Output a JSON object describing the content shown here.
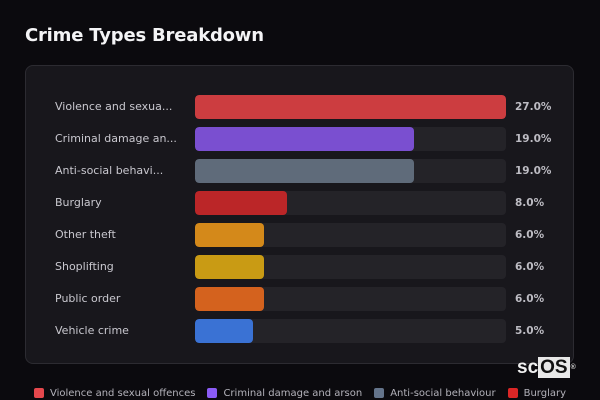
{
  "header": {
    "title": "Crime Types Breakdown"
  },
  "chart_data": {
    "type": "bar",
    "orientation": "horizontal",
    "title": "Crime Types Breakdown",
    "xlabel": "",
    "ylabel": "",
    "xlim": [
      0,
      27
    ],
    "value_format": "percent",
    "categories": [
      "Violence and sexual offences",
      "Criminal damage and arson",
      "Anti-social behaviour",
      "Burglary",
      "Other theft",
      "Shoplifting",
      "Public order",
      "Vehicle crime"
    ],
    "display_labels": [
      "Violence and sexua...",
      "Criminal damage an...",
      "Anti-social behavi...",
      "Burglary",
      "Other theft",
      "Shoplifting",
      "Public order",
      "Vehicle crime"
    ],
    "values": [
      27.0,
      19.0,
      19.0,
      8.0,
      6.0,
      6.0,
      6.0,
      5.0
    ],
    "value_labels": [
      "27.0%",
      "19.0%",
      "19.0%",
      "8.0%",
      "6.0%",
      "6.0%",
      "6.0%",
      "5.0%"
    ],
    "colors": [
      "#cc3d40",
      "#7a4fd0",
      "#5f6b7a",
      "#bb2628",
      "#d4891a",
      "#c99b14",
      "#d4621e",
      "#3a72d4"
    ],
    "legend": {
      "position": "bottom",
      "entries": [
        {
          "label": "Violence and sexual offences",
          "color": "#e5484d"
        },
        {
          "label": "Criminal damage and arson",
          "color": "#8b5cf6"
        },
        {
          "label": "Anti-social behaviour",
          "color": "#64748b"
        },
        {
          "label": "Burglary",
          "color": "#dc2626"
        }
      ]
    },
    "grid": false
  },
  "logo": {
    "prefix": "sc",
    "highlight": "OS",
    "mark": "®"
  }
}
